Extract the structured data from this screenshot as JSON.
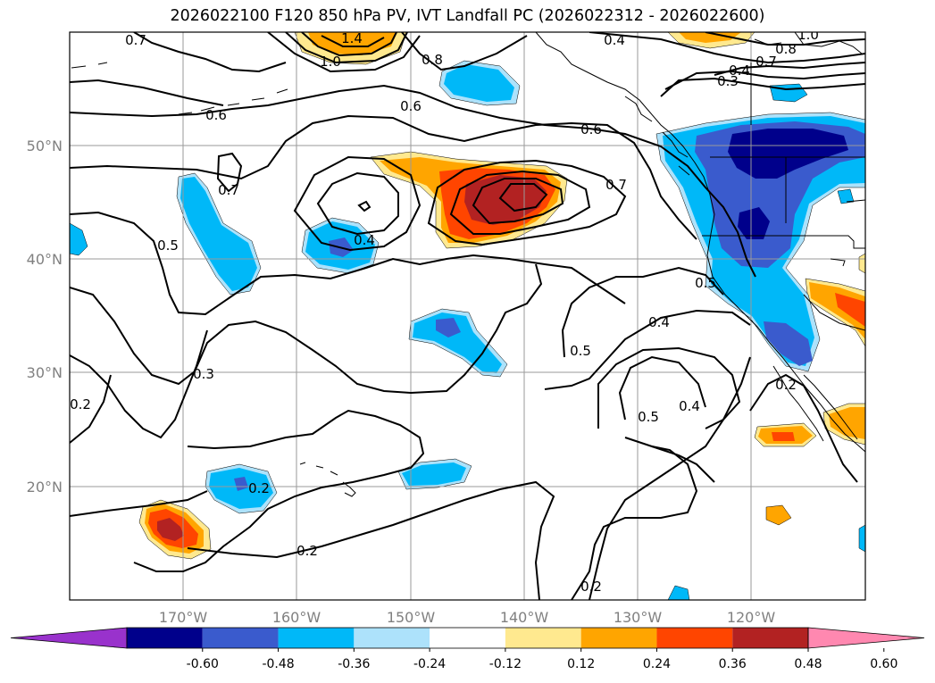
{
  "title": "2026022100 F120 850 hPa PV, IVT Landfall PC (2026022312 - 2026022600)",
  "lat_ticks": [
    "50°N",
    "40°N",
    "30°N",
    "20°N"
  ],
  "lon_ticks": [
    "170°W",
    "160°W",
    "150°W",
    "140°W",
    "130°W",
    "120°W"
  ],
  "contour_labels": [
    "0.7",
    "1.4",
    "1.0",
    "0.8",
    "0.4",
    "1.0",
    "0.8",
    "0.7",
    "0.4",
    "0.3",
    "0.6",
    "0.6",
    "0.6",
    "0.7",
    "0.7",
    "0.5",
    "0.4",
    "0.5",
    "0.5",
    "0.4",
    "0.3",
    "0.5",
    "0.4",
    "0.2",
    "0.2",
    "0.2",
    "0.2",
    "0.2"
  ],
  "colorbar": {
    "colors": [
      "#9932cc",
      "#00008b",
      "#3a5bcd",
      "#00b8f8",
      "#ade2fb",
      "#ffffff",
      "#ffe98f",
      "#ffa500",
      "#ff4500",
      "#b22222",
      "#ff88b0"
    ],
    "labels": [
      "-0.60",
      "-0.48",
      "-0.36",
      "-0.24",
      "-0.12",
      "0.12",
      "0.24",
      "0.36",
      "0.48",
      "0.60"
    ]
  },
  "anomaly_colors": {
    "neg_strong": "#00008b",
    "neg_mid": "#3a5bcd",
    "neg_light": "#00b8f8",
    "neg_faint": "#ade2fb",
    "pos_faint": "#ffe98f",
    "pos_light": "#ffa500",
    "pos_mid": "#ff4500",
    "pos_strong": "#b22222"
  }
}
